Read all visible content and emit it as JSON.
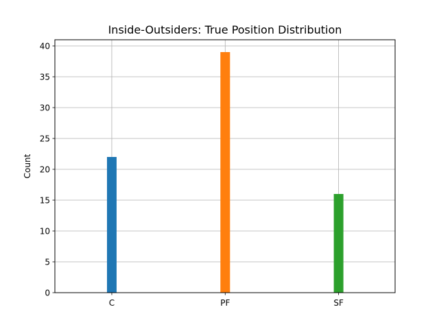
{
  "chart_data": {
    "type": "bar",
    "title": "Inside-Outsiders: True Position Distribution",
    "xlabel": "",
    "ylabel": "Count",
    "categories": [
      "C",
      "PF",
      "SF"
    ],
    "values": [
      22,
      39,
      16
    ],
    "colors": [
      "#1f77b4",
      "#ff7f0e",
      "#2ca02c"
    ],
    "ylim": [
      0,
      41
    ],
    "yticks": [
      0,
      5,
      10,
      15,
      20,
      25,
      30,
      35,
      40
    ],
    "grid": true
  }
}
